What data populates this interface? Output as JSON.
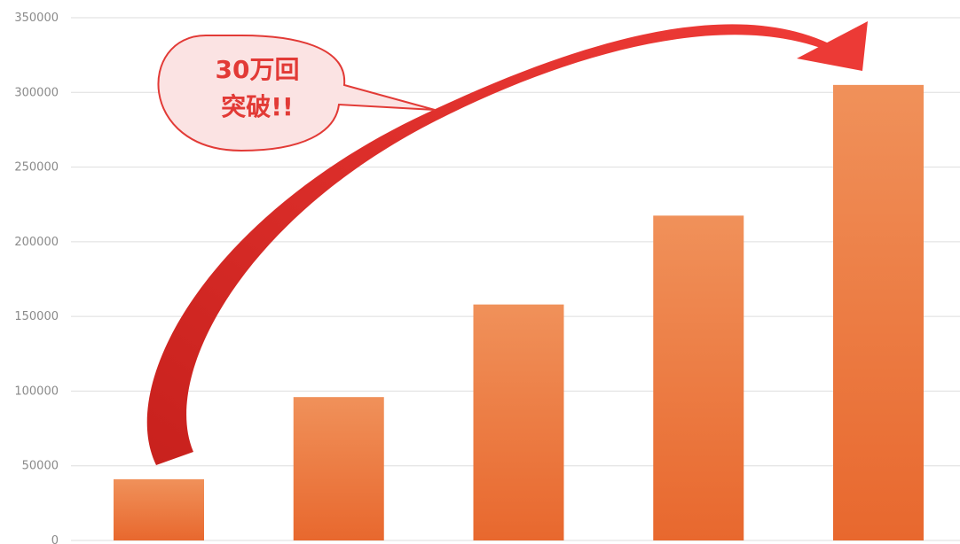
{
  "chart_data": {
    "type": "bar",
    "categories": [
      "",
      "",
      "",
      "",
      ""
    ],
    "values": [
      41000,
      96000,
      158000,
      217500,
      305000
    ],
    "title": "",
    "xlabel": "",
    "ylabel": "",
    "ylim": [
      0,
      350000
    ],
    "yticks": [
      0,
      50000,
      100000,
      150000,
      200000,
      250000,
      300000,
      350000
    ],
    "ytick_labels": [
      "0",
      "50000",
      "100000",
      "150000",
      "200000",
      "250000",
      "300000",
      "350000"
    ],
    "grid": "horizontal",
    "legend": "none",
    "bar_color_top": "#f0915a",
    "bar_color_bottom": "#e8682e",
    "annotation": {
      "line1": "30万回",
      "line2": "突破!!",
      "color": "#e23a36",
      "bubble_fill": "#fbe3e3"
    }
  }
}
